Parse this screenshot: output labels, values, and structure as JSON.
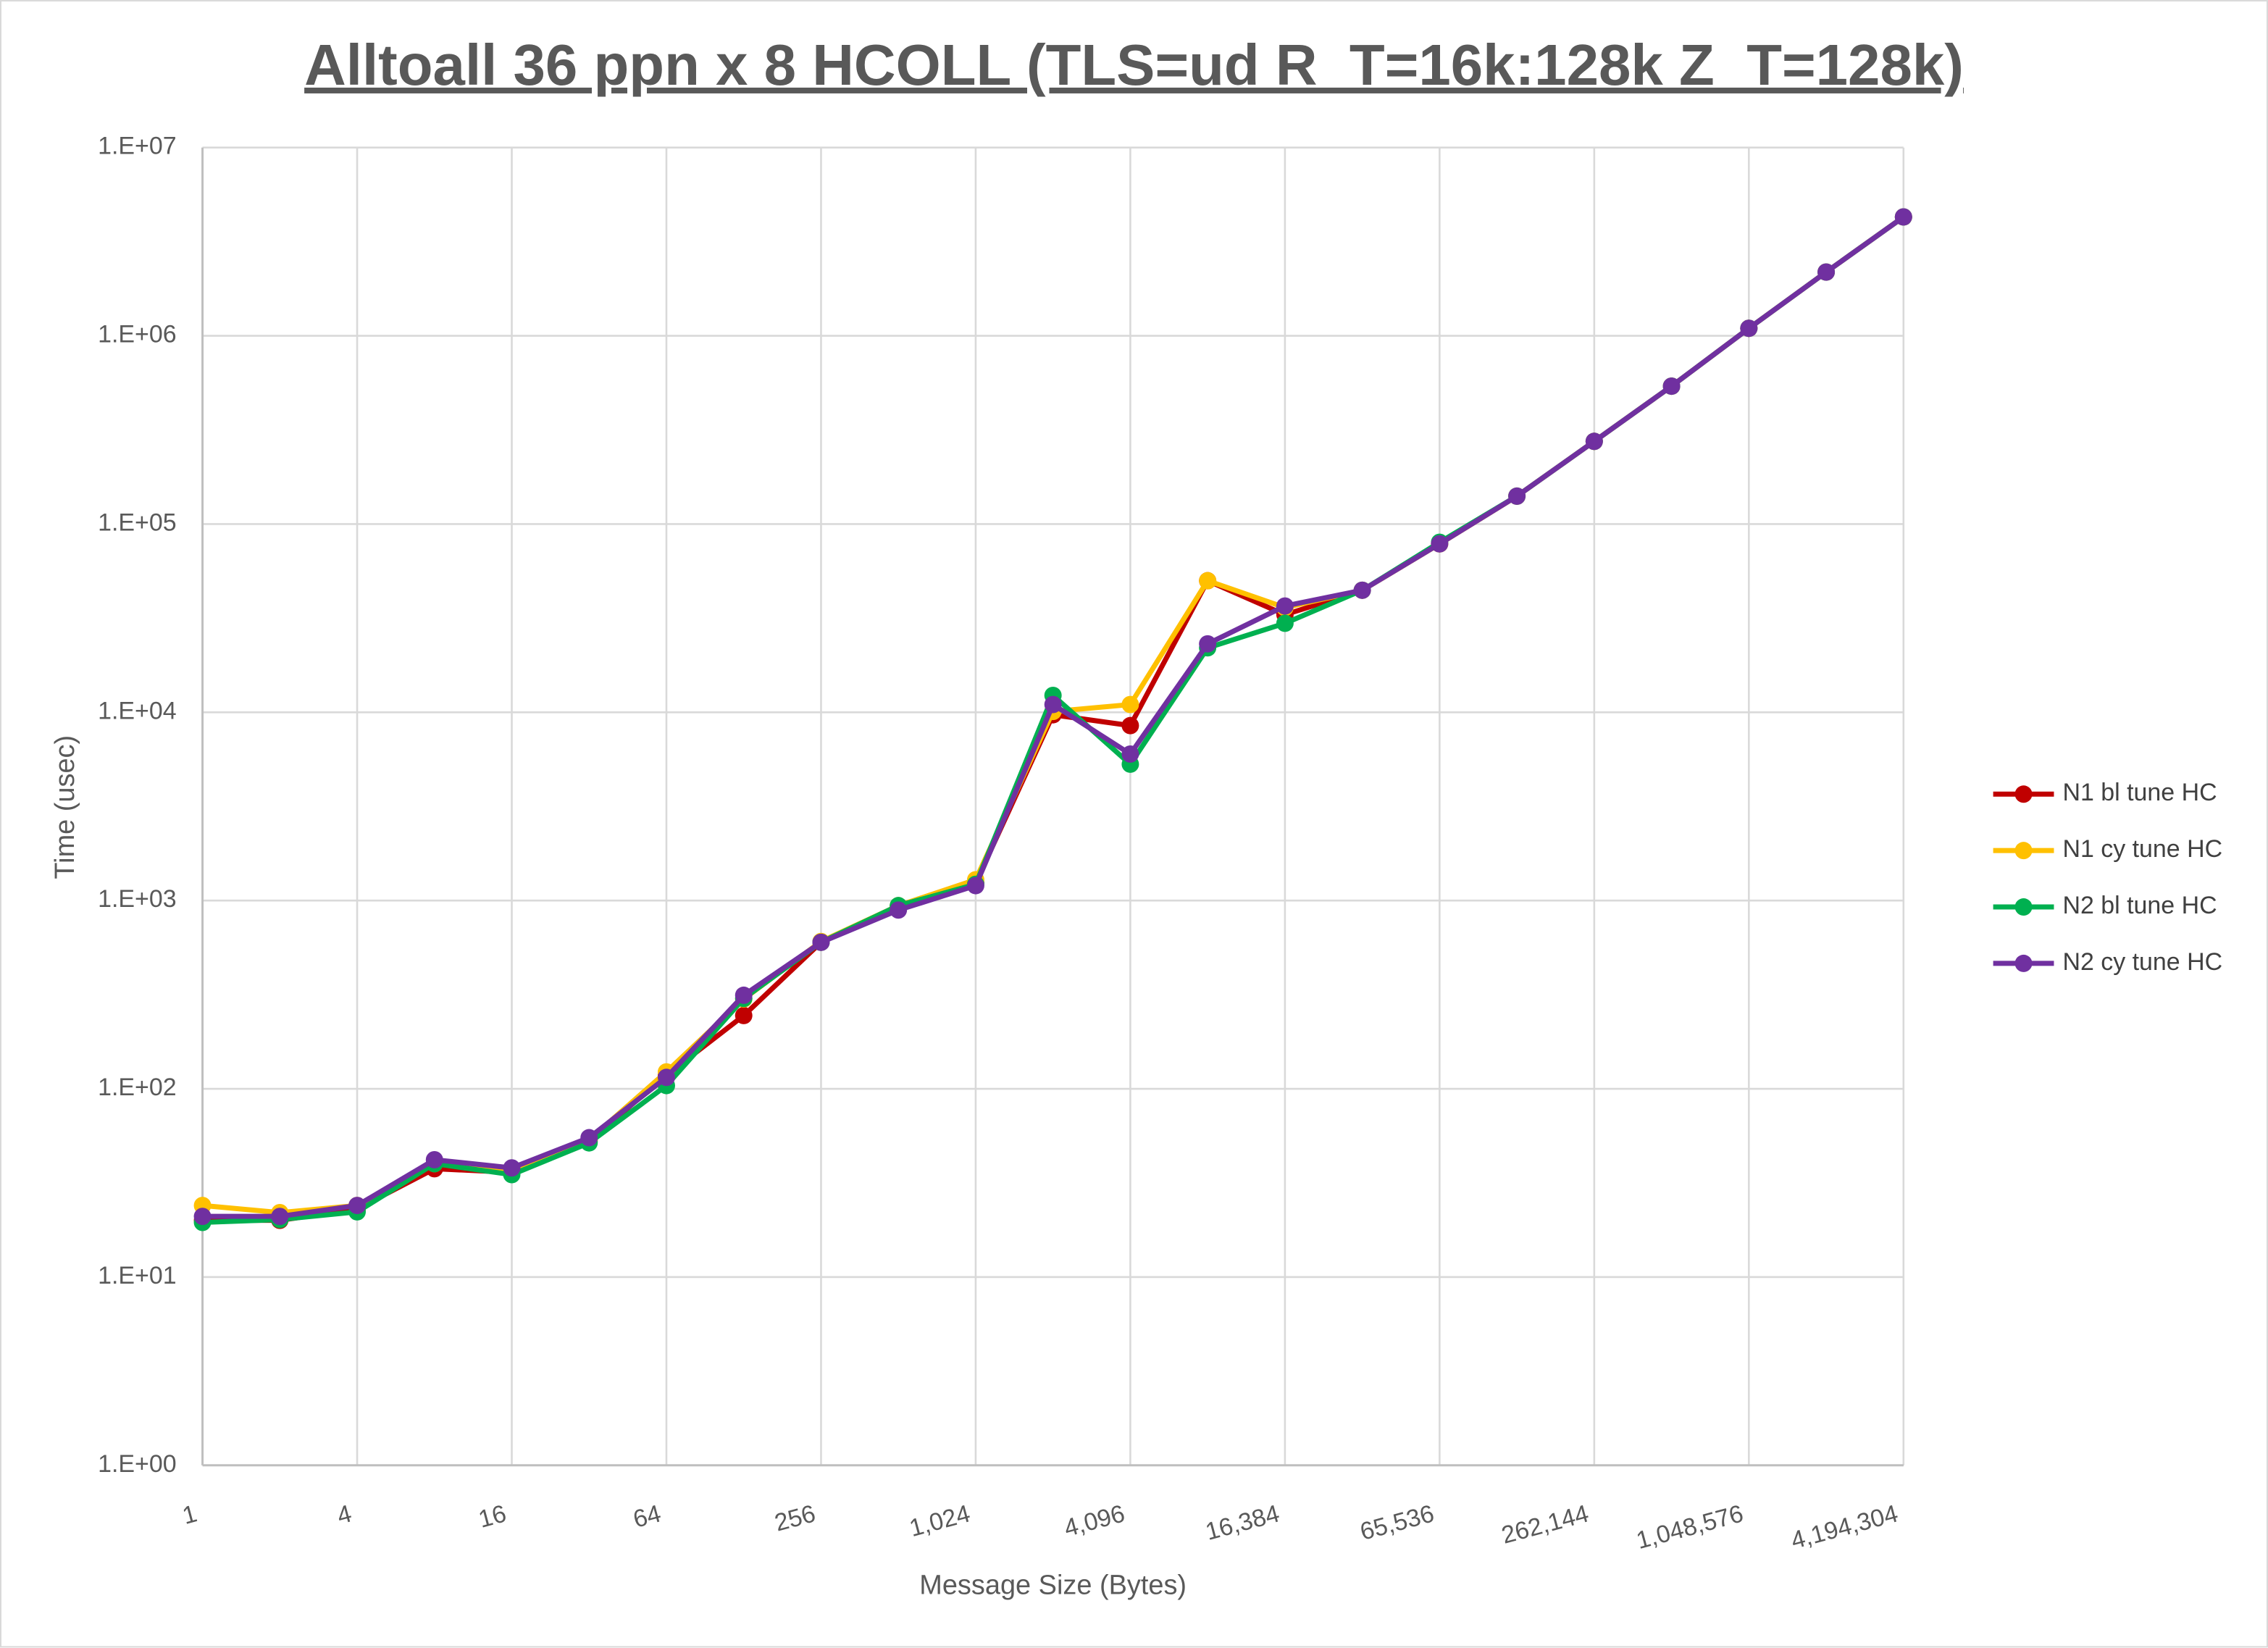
{
  "chart_data": {
    "type": "line",
    "title": "Alltoall 36 ppn x 8 HCOLL (TLS=ud R_T=16k:128k Z_T=128k)",
    "x_label": "Message Size (Bytes)",
    "y_label": "Time (usec)",
    "x": [
      1,
      2,
      4,
      8,
      16,
      32,
      64,
      128,
      256,
      512,
      1024,
      2048,
      4096,
      8192,
      16384,
      32768,
      65536,
      131072,
      262144,
      524288,
      1048576,
      2097152,
      4194304
    ],
    "xlim": [
      1,
      4194304
    ],
    "xticks": [
      1,
      4,
      16,
      64,
      256,
      {
        "value": 1024,
        "label": "1,024"
      },
      {
        "value": 4096,
        "label": "4,096"
      },
      {
        "value": 16384,
        "label": "16,384"
      },
      {
        "value": 65536,
        "label": "65,536"
      },
      {
        "value": 262144,
        "label": "262,144"
      },
      {
        "value": 1048576,
        "label": "1,048,576"
      },
      {
        "value": 4194304,
        "label": "4,194,304"
      }
    ],
    "x_log": true,
    "ylim": [
      1,
      10000000
    ],
    "yticks": [
      {
        "value": 1,
        "label": "1.E+00"
      },
      {
        "value": 10,
        "label": "1.E+01"
      },
      {
        "value": 100,
        "label": "1.E+02"
      },
      {
        "value": 1000,
        "label": "1.E+03"
      },
      {
        "value": 10000,
        "label": "1.E+04"
      },
      {
        "value": 100000,
        "label": "1.E+05"
      },
      {
        "value": 1000000,
        "label": "1.E+06"
      },
      {
        "value": 10000000,
        "label": "1.E+07"
      }
    ],
    "y_log": true,
    "grid": true,
    "legend": "right",
    "series": [
      {
        "name": "N1 bl tune HC",
        "color": "#c00000",
        "values": [
          20,
          20,
          23,
          37.6,
          36,
          53,
          118,
          245,
          600,
          930,
          1240,
          9700,
          8500,
          50000,
          33000,
          44500,
          78500,
          140700,
          275000,
          540000,
          1096000,
          2180000,
          4280000
        ]
      },
      {
        "name": "N1 cy tune HC",
        "color": "#ffc000",
        "values": [
          24,
          22,
          24,
          40,
          36.4,
          53.6,
          123,
          300,
          606,
          940,
          1290,
          10100,
          11000,
          50000,
          36000,
          44500,
          78500,
          140700,
          275000,
          540000,
          1096000,
          2180000,
          4280000
        ]
      },
      {
        "name": "N2 bl tune HC",
        "color": "#00b050",
        "values": [
          19.5,
          20.2,
          22.2,
          40,
          35,
          51.6,
          104,
          302,
          600,
          940,
          1220,
          12300,
          5300,
          22000,
          29700,
          44500,
          80000,
          140700,
          275000,
          540000,
          1096000,
          2180000,
          4280000
        ]
      },
      {
        "name": "N2 cy tune HC",
        "color": "#7030a0",
        "values": [
          21,
          21,
          24,
          42,
          38,
          55,
          115,
          314,
          600,
          890,
          1200,
          11000,
          6000,
          23100,
          36700,
          44500,
          78500,
          140700,
          275000,
          540000,
          1096000,
          2180000,
          4280000
        ]
      }
    ]
  }
}
